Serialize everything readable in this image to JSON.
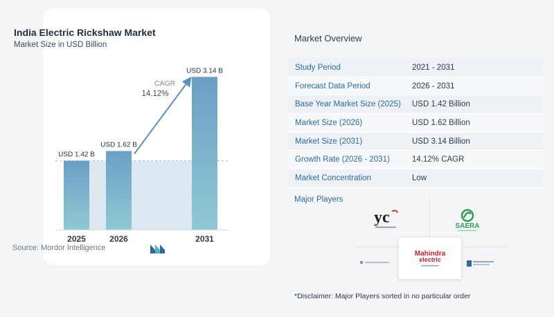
{
  "chart": {
    "title": "India Electric Rickshaw Market",
    "subtitle": "Market Size in USD Billion",
    "source": "Source:  Mordor Intelligence",
    "cagr_label": "CAGR",
    "cagr_value": "14.12%"
  },
  "chart_data": {
    "type": "bar",
    "title": "India Electric Rickshaw Market",
    "subtitle": "Market Size in USD Billion",
    "categories": [
      "2025",
      "2026",
      "2031"
    ],
    "values": [
      1.42,
      1.62,
      3.14
    ],
    "data_labels": [
      "USD 1.42 B",
      "USD 1.62 B",
      "USD 3.14 B"
    ],
    "ylim": [
      0,
      3.3
    ],
    "annotation": {
      "label": "CAGR",
      "value": "14.12%",
      "from": "2026",
      "to": "2031"
    },
    "colors": {
      "bar_top": "#6a9fc6",
      "bar_bottom": "#8fc9d2",
      "shade": "#dde8f0",
      "arrow": "#5b8fc0"
    }
  },
  "overview": {
    "title": "Market Overview",
    "rows": [
      {
        "label": "Study Period",
        "value": "2021 - 2031"
      },
      {
        "label": "Forecast Data Period",
        "value": "2026 - 2031"
      },
      {
        "label": "Base Year Market Size (2025)",
        "value": "USD 1.42 Billion"
      },
      {
        "label": "Market Size (2026)",
        "value": "USD 1.62 Billion"
      },
      {
        "label": "Market Size (2031)",
        "value": "USD 3.14 Billion"
      },
      {
        "label": "Growth Rate (2026 - 2031)",
        "value": "14.12% CAGR"
      },
      {
        "label": "Market Concentration",
        "value": "Low"
      }
    ]
  },
  "players": {
    "label": "Major Players",
    "logos": {
      "yc": "yc",
      "saera": "SAERA",
      "mahindra_1": "Mahindra",
      "mahindra_2": "electric"
    }
  },
  "disclaimer": "*Disclaimer: Major Players sorted in no particular order"
}
